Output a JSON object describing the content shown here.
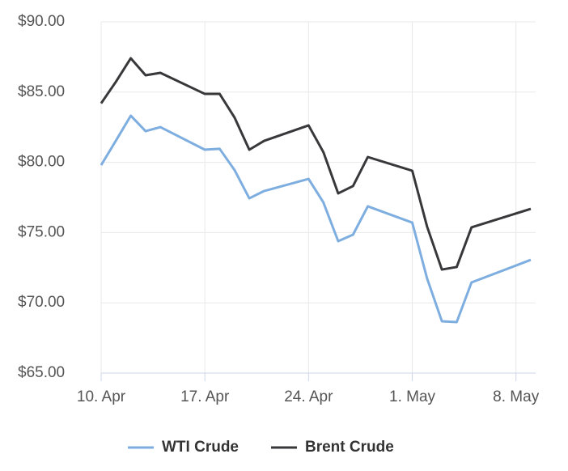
{
  "chart_data": {
    "type": "line",
    "x": [
      "04-10",
      "04-11",
      "04-12",
      "04-13",
      "04-14",
      "04-17",
      "04-18",
      "04-19",
      "04-20",
      "04-21",
      "04-24",
      "04-25",
      "04-26",
      "04-27",
      "04-28",
      "05-01",
      "05-02",
      "05-03",
      "05-04",
      "05-05",
      "05-09"
    ],
    "series": [
      {
        "name": "WTI Crude",
        "color": "#7eaee0",
        "values": [
          79.8,
          81.55,
          83.32,
          82.22,
          82.51,
          80.9,
          80.96,
          79.46,
          77.44,
          77.96,
          78.82,
          77.15,
          74.39,
          74.85,
          76.87,
          75.71,
          71.74,
          68.69,
          68.63,
          71.45,
          73.06
        ]
      },
      {
        "name": "Brent Crude",
        "color": "#38383b",
        "values": [
          84.2,
          85.74,
          87.41,
          86.2,
          86.37,
          84.87,
          84.87,
          83.2,
          80.9,
          81.53,
          82.63,
          80.73,
          77.79,
          78.31,
          80.38,
          79.4,
          75.43,
          72.37,
          72.55,
          75.37,
          76.69
        ]
      }
    ],
    "xlim": [
      "04-10",
      "05-09"
    ],
    "xticks": [
      {
        "value": "04-10",
        "label": "10. Apr"
      },
      {
        "value": "04-17",
        "label": "17. Apr"
      },
      {
        "value": "04-24",
        "label": "24. Apr"
      },
      {
        "value": "05-01",
        "label": "1. May"
      },
      {
        "value": "05-08",
        "label": "8. May"
      }
    ],
    "ylim": [
      65,
      90
    ],
    "yticks": [
      {
        "value": 65,
        "label": "$65.00"
      },
      {
        "value": 70,
        "label": "$70.00"
      },
      {
        "value": 75,
        "label": "$75.00"
      },
      {
        "value": 80,
        "label": "$80.00"
      },
      {
        "value": 85,
        "label": "$85.00"
      },
      {
        "value": 90,
        "label": "$90.00"
      }
    ],
    "grid": true,
    "legend": "bottom"
  }
}
